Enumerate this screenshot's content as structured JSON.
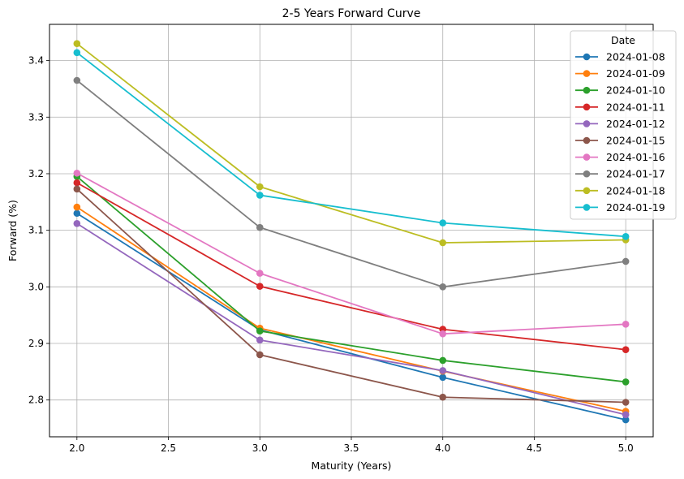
{
  "chart_data": {
    "type": "line",
    "title": "2-5 Years Forward Curve",
    "xlabel": "Maturity (Years)",
    "ylabel": "Forward (%)",
    "xlim": [
      1.85,
      5.15
    ],
    "ylim": [
      2.735,
      3.464
    ],
    "xticks": [
      "2.0",
      "2.5",
      "3.0",
      "3.5",
      "4.0",
      "4.5",
      "5.0"
    ],
    "yticks": [
      "2.8",
      "2.9",
      "3.0",
      "3.1",
      "3.2",
      "3.3",
      "3.4"
    ],
    "grid": true,
    "marker": "circle",
    "legend": {
      "title": "Date",
      "position": "top-right"
    },
    "x": [
      2,
      3,
      4,
      5
    ],
    "series": [
      {
        "name": "2024-01-08",
        "color": "#1f77b4",
        "values": [
          3.13,
          2.924,
          2.84,
          2.765
        ]
      },
      {
        "name": "2024-01-09",
        "color": "#ff7f0e",
        "values": [
          3.141,
          2.927,
          2.851,
          2.78
        ]
      },
      {
        "name": "2024-01-10",
        "color": "#2ca02c",
        "values": [
          3.195,
          2.922,
          2.87,
          2.832
        ]
      },
      {
        "name": "2024-01-11",
        "color": "#d62728",
        "values": [
          3.184,
          3.001,
          2.925,
          2.889
        ]
      },
      {
        "name": "2024-01-12",
        "color": "#9467bd",
        "values": [
          3.112,
          2.906,
          2.852,
          2.774
        ]
      },
      {
        "name": "2024-01-15",
        "color": "#8c564b",
        "values": [
          3.173,
          2.88,
          2.805,
          2.796
        ]
      },
      {
        "name": "2024-01-16",
        "color": "#e377c2",
        "values": [
          3.201,
          3.024,
          2.917,
          2.934
        ]
      },
      {
        "name": "2024-01-17",
        "color": "#7f7f7f",
        "values": [
          3.365,
          3.105,
          3.0,
          3.045
        ]
      },
      {
        "name": "2024-01-18",
        "color": "#bcbd22",
        "values": [
          3.43,
          3.177,
          3.078,
          3.083
        ]
      },
      {
        "name": "2024-01-19",
        "color": "#17becf",
        "values": [
          3.414,
          3.162,
          3.113,
          3.089
        ]
      }
    ]
  }
}
